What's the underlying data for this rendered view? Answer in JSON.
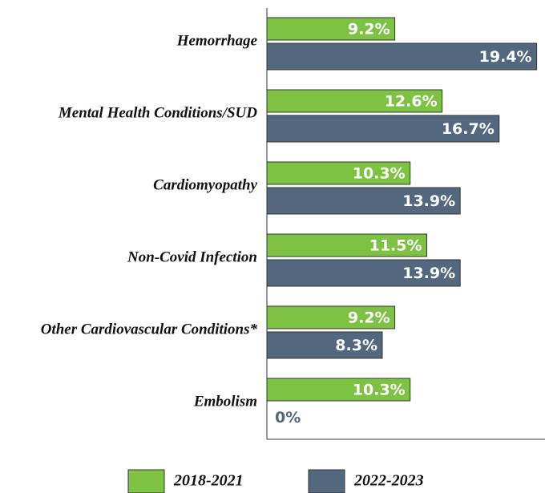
{
  "chart_data": {
    "type": "bar",
    "orientation": "horizontal",
    "categories": [
      "Hemorrhage",
      "Mental Health Conditions/SUD",
      "Cardiomyopathy",
      "Non-Covid Infection",
      "Other Cardiovascular Conditions*",
      "Embolism"
    ],
    "series": [
      {
        "name": "2018-2021",
        "color": "#7dc242",
        "values": [
          9.2,
          12.6,
          10.3,
          11.5,
          9.2,
          10.3
        ],
        "value_labels": [
          "9.2%",
          "12.6%",
          "10.3%",
          "11.5%",
          "9.2%",
          "10.3%"
        ]
      },
      {
        "name": "2022-2023",
        "color": "#53687f",
        "values": [
          19.4,
          16.7,
          13.9,
          13.9,
          8.3,
          0
        ],
        "value_labels": [
          "19.4%",
          "16.7%",
          "13.9%",
          "13.9%",
          "8.3%",
          "0%"
        ]
      }
    ],
    "xlim": [
      0,
      20
    ],
    "legend": "bottom"
  }
}
